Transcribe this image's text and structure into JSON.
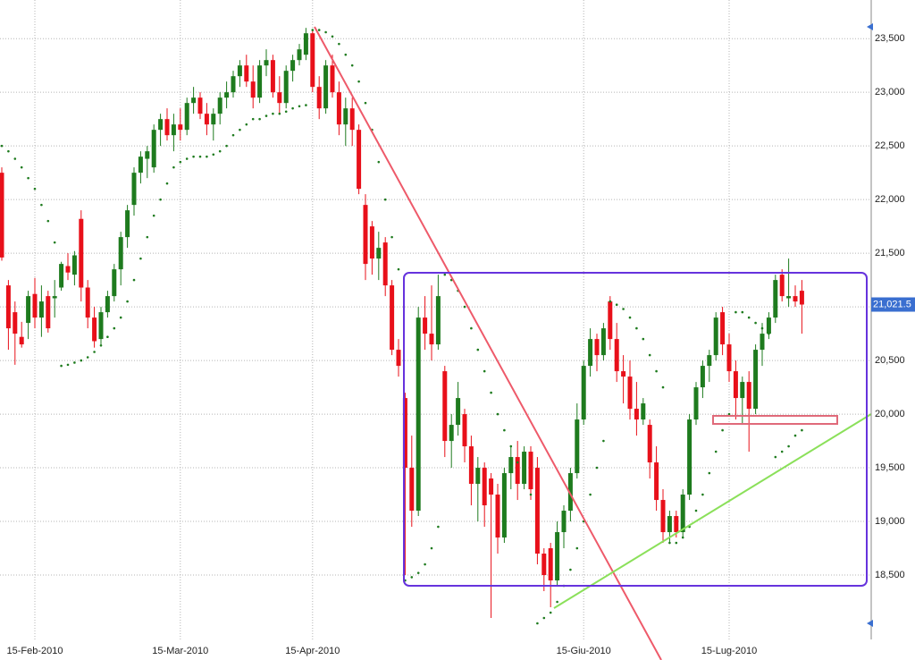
{
  "chart_data": {
    "type": "candlestick",
    "up_color": "#1e7b1e",
    "down_color": "#e8101a",
    "sar_color": "#1e7b1e",
    "ylim": [
      17900,
      23860
    ],
    "yticks": [
      {
        "value": 18500,
        "label": "18,500"
      },
      {
        "value": 19000,
        "label": "19,000"
      },
      {
        "value": 19500,
        "label": "19,500"
      },
      {
        "value": 20000,
        "label": "20,000"
      },
      {
        "value": 20500,
        "label": "20,500"
      },
      {
        "value": 21000,
        "label": "21,000"
      },
      {
        "value": 21500,
        "label": "21,500"
      },
      {
        "value": 22000,
        "label": "22,000"
      },
      {
        "value": 22500,
        "label": "22,500"
      },
      {
        "value": 23000,
        "label": "23,000"
      },
      {
        "value": 23500,
        "label": "23,500"
      }
    ],
    "grid": true,
    "last_price": {
      "value": 21021.5,
      "label": "21,021.5"
    },
    "categories": [
      null,
      null,
      null,
      null,
      null,
      "15-Feb-2010",
      null,
      null,
      null,
      null,
      null,
      null,
      null,
      null,
      null,
      null,
      null,
      null,
      null,
      null,
      null,
      null,
      null,
      null,
      null,
      null,
      null,
      "15-Mar-2010",
      null,
      null,
      null,
      null,
      null,
      null,
      null,
      null,
      null,
      null,
      null,
      null,
      null,
      null,
      null,
      null,
      null,
      null,
      null,
      "15-Apr-2010",
      null,
      null,
      null,
      null,
      null,
      null,
      null,
      null,
      null,
      null,
      null,
      null,
      null,
      null,
      null,
      null,
      null,
      null,
      null,
      null,
      null,
      null,
      null,
      null,
      null,
      null,
      null,
      null,
      null,
      null,
      null,
      null,
      null,
      null,
      null,
      null,
      null,
      null,
      null,
      null,
      "15-Giu-2010",
      null,
      null,
      null,
      null,
      null,
      null,
      null,
      null,
      null,
      null,
      null,
      null,
      null,
      null,
      null,
      null,
      null,
      null,
      null,
      null,
      null,
      "15-Lug-2010",
      null,
      null,
      null,
      null,
      null,
      null,
      null,
      null,
      null,
      null,
      null
    ],
    "ohlc": [
      [
        22250,
        22300,
        21430,
        21460
      ],
      [
        21200,
        21250,
        20600,
        20800
      ],
      [
        20950,
        21050,
        20460,
        20750
      ],
      [
        20720,
        20860,
        20620,
        20650
      ],
      [
        20850,
        21150,
        20700,
        21100
      ],
      [
        21120,
        21270,
        20800,
        20900
      ],
      [
        20900,
        21200,
        20720,
        21050
      ],
      [
        21100,
        21150,
        20760,
        20800
      ],
      [
        21080,
        21250,
        20900,
        21100
      ],
      [
        21180,
        21420,
        21150,
        21400
      ],
      [
        21380,
        21500,
        21250,
        21320
      ],
      [
        21300,
        21520,
        21200,
        21480
      ],
      [
        21820,
        21900,
        21050,
        21180
      ],
      [
        21180,
        21250,
        20800,
        20900
      ],
      [
        20900,
        21000,
        20620,
        20680
      ],
      [
        20700,
        21000,
        20650,
        20950
      ],
      [
        20950,
        21150,
        20900,
        21100
      ],
      [
        21100,
        21400,
        21050,
        21350
      ],
      [
        21350,
        21700,
        21200,
        21650
      ],
      [
        21650,
        21950,
        21550,
        21900
      ],
      [
        21950,
        22300,
        21850,
        22250
      ],
      [
        22250,
        22450,
        22150,
        22400
      ],
      [
        22380,
        22500,
        22200,
        22450
      ],
      [
        22300,
        22700,
        22250,
        22650
      ],
      [
        22650,
        22800,
        22500,
        22750
      ],
      [
        22750,
        22850,
        22550,
        22600
      ],
      [
        22600,
        22800,
        22450,
        22700
      ],
      [
        22700,
        22850,
        22550,
        22650
      ],
      [
        22650,
        22950,
        22600,
        22900
      ],
      [
        22900,
        23050,
        22800,
        22950
      ],
      [
        22950,
        23000,
        22750,
        22800
      ],
      [
        22800,
        22900,
        22600,
        22700
      ],
      [
        22700,
        22850,
        22550,
        22800
      ],
      [
        22800,
        23000,
        22700,
        22950
      ],
      [
        22950,
        23100,
        22850,
        23000
      ],
      [
        23000,
        23200,
        22950,
        23150
      ],
      [
        23150,
        23300,
        23050,
        23250
      ],
      [
        23250,
        23350,
        23050,
        23100
      ],
      [
        23100,
        23250,
        22850,
        22950
      ],
      [
        22950,
        23300,
        22900,
        23250
      ],
      [
        23250,
        23400,
        23150,
        23300
      ],
      [
        23300,
        23350,
        22950,
        23000
      ],
      [
        23000,
        23150,
        22800,
        22900
      ],
      [
        22900,
        23250,
        22850,
        23200
      ],
      [
        23200,
        23350,
        23100,
        23300
      ],
      [
        23300,
        23450,
        23250,
        23400
      ],
      [
        23350,
        23600,
        23300,
        23550
      ],
      [
        23550,
        23580,
        23000,
        23050
      ],
      [
        23050,
        23150,
        22750,
        22850
      ],
      [
        22850,
        23300,
        22800,
        23250
      ],
      [
        23250,
        23350,
        22950,
        23000
      ],
      [
        23000,
        23100,
        22600,
        22700
      ],
      [
        22700,
        22950,
        22500,
        22850
      ],
      [
        22850,
        22950,
        22500,
        22650
      ],
      [
        22650,
        22700,
        22050,
        22100
      ],
      [
        21950,
        22050,
        21250,
        21400
      ],
      [
        21750,
        21800,
        21300,
        21450
      ],
      [
        21450,
        21700,
        21250,
        21550
      ],
      [
        21600,
        21650,
        21100,
        21200
      ],
      [
        21200,
        21250,
        20550,
        20600
      ],
      [
        20600,
        20700,
        20350,
        20450
      ],
      [
        20150,
        20200,
        18500,
        19500
      ],
      [
        19500,
        19800,
        18950,
        19100
      ],
      [
        19100,
        21000,
        19050,
        20900
      ],
      [
        20900,
        21100,
        20600,
        20750
      ],
      [
        20750,
        21200,
        20500,
        20650
      ],
      [
        20650,
        21300,
        20600,
        21100
      ],
      [
        20400,
        20450,
        19600,
        19750
      ],
      [
        19750,
        20000,
        19500,
        19900
      ],
      [
        19900,
        20300,
        19800,
        20150
      ],
      [
        20000,
        20050,
        19550,
        19700
      ],
      [
        19700,
        19800,
        19150,
        19350
      ],
      [
        19350,
        19600,
        19000,
        19500
      ],
      [
        19500,
        19550,
        18950,
        19150
      ],
      [
        19400,
        19450,
        18100,
        19250
      ],
      [
        19250,
        19350,
        18700,
        18850
      ],
      [
        18850,
        19500,
        18800,
        19450
      ],
      [
        19450,
        19700,
        19300,
        19600
      ],
      [
        19600,
        19750,
        19200,
        19350
      ],
      [
        19350,
        19700,
        19300,
        19650
      ],
      [
        19650,
        19700,
        19200,
        19300
      ],
      [
        19500,
        19600,
        18600,
        18700
      ],
      [
        18700,
        18750,
        18350,
        18500
      ],
      [
        18750,
        18800,
        18200,
        18450
      ],
      [
        18450,
        19000,
        18400,
        18900
      ],
      [
        18900,
        19150,
        18750,
        19100
      ],
      [
        19100,
        19500,
        19000,
        19450
      ],
      [
        19450,
        20100,
        19400,
        19950
      ],
      [
        19950,
        20500,
        19900,
        20450
      ],
      [
        20450,
        20800,
        20350,
        20700
      ],
      [
        20700,
        20750,
        20400,
        20550
      ],
      [
        20550,
        20850,
        20500,
        20800
      ],
      [
        21050,
        21100,
        20600,
        20700
      ],
      [
        20700,
        20850,
        20300,
        20400
      ],
      [
        20400,
        20550,
        20100,
        20350
      ],
      [
        20350,
        20500,
        19950,
        20050
      ],
      [
        20050,
        20300,
        19800,
        19950
      ],
      [
        19950,
        20150,
        19900,
        20100
      ],
      [
        19900,
        19950,
        19400,
        19550
      ],
      [
        19550,
        19700,
        19100,
        19200
      ],
      [
        19200,
        19300,
        18800,
        18900
      ],
      [
        18900,
        19100,
        18800,
        19050
      ],
      [
        19050,
        19100,
        18850,
        18900
      ],
      [
        18900,
        19300,
        18850,
        19250
      ],
      [
        19250,
        20000,
        19200,
        19950
      ],
      [
        19950,
        20300,
        19900,
        20250
      ],
      [
        20250,
        20500,
        20150,
        20450
      ],
      [
        20450,
        20600,
        20300,
        20550
      ],
      [
        20550,
        20950,
        20500,
        20900
      ],
      [
        20950,
        21000,
        20550,
        20650
      ],
      [
        20650,
        20750,
        20300,
        20400
      ],
      [
        20400,
        20500,
        19950,
        20150
      ],
      [
        20150,
        20350,
        19900,
        20300
      ],
      [
        20300,
        20400,
        19650,
        20050
      ],
      [
        20050,
        20650,
        20000,
        20600
      ],
      [
        20600,
        20850,
        20450,
        20750
      ],
      [
        20750,
        20950,
        20700,
        20900
      ],
      [
        20900,
        21300,
        20850,
        21250
      ],
      [
        21300,
        21350,
        21050,
        21100
      ],
      [
        21080,
        21450,
        21000,
        21100
      ],
      [
        21100,
        21200,
        21000,
        21050
      ],
      [
        21150,
        21250,
        20750,
        21021.5
      ]
    ],
    "sar": [
      22500,
      22450,
      22380,
      22300,
      22200,
      22100,
      21950,
      21800,
      21600,
      20450,
      20460,
      20480,
      20500,
      20530,
      20580,
      20640,
      20720,
      20800,
      20900,
      21050,
      21250,
      21450,
      21650,
      21850,
      22000,
      22150,
      22300,
      22350,
      22380,
      22400,
      22400,
      22400,
      22420,
      22450,
      22500,
      22600,
      22650,
      22700,
      22750,
      22750,
      22780,
      22800,
      22800,
      22820,
      22850,
      22870,
      22880,
      23580,
      23580,
      23560,
      23520,
      23450,
      23350,
      23250,
      23100,
      22900,
      22650,
      22350,
      22000,
      21650,
      21350,
      18450,
      18480,
      18520,
      18600,
      18750,
      18950,
      21300,
      21250,
      21150,
      21000,
      20800,
      20600,
      20400,
      20200,
      20000,
      19850,
      19700,
      19550,
      19400,
      19250,
      18050,
      18100,
      18150,
      18250,
      18400,
      18550,
      18750,
      19000,
      19250,
      19500,
      19750,
      21050,
      21020,
      20980,
      20900,
      20800,
      20700,
      20550,
      20400,
      20250,
      18800,
      18800,
      18850,
      18950,
      19100,
      19250,
      19450,
      19650,
      19850,
      20000,
      20950,
      20950,
      20900,
      20850,
      20800,
      20750,
      19600,
      19650,
      19700,
      19800,
      19850
    ]
  }
}
